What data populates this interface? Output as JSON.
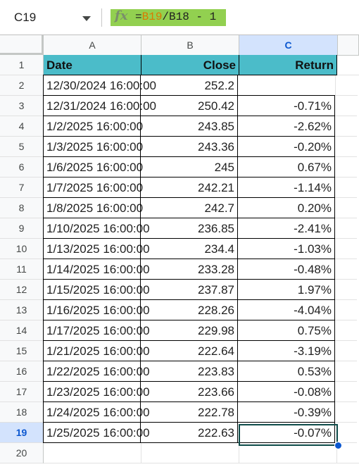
{
  "name_box": {
    "value": "C19"
  },
  "formula": {
    "prefix": "=",
    "ref1": "B19",
    "rest": "/B18 - 1"
  },
  "columns": [
    {
      "label": "A",
      "selected": false
    },
    {
      "label": "B",
      "selected": false
    },
    {
      "label": "C",
      "selected": true
    }
  ],
  "selected_row": "19",
  "rows": [
    {
      "n": "1",
      "date": "Date",
      "close": "Close",
      "ret": "Return",
      "header": true
    },
    {
      "n": "2",
      "date": "12/30/2024 16:00:00",
      "close": "252.2",
      "ret": ""
    },
    {
      "n": "3",
      "date": "12/31/2024 16:00:00",
      "close": "250.42",
      "ret": "-0.71%"
    },
    {
      "n": "4",
      "date": "1/2/2025 16:00:00",
      "close": "243.85",
      "ret": "-2.62%"
    },
    {
      "n": "5",
      "date": "1/3/2025 16:00:00",
      "close": "243.36",
      "ret": "-0.20%"
    },
    {
      "n": "6",
      "date": "1/6/2025 16:00:00",
      "close": "245",
      "ret": "0.67%"
    },
    {
      "n": "7",
      "date": "1/7/2025 16:00:00",
      "close": "242.21",
      "ret": "-1.14%"
    },
    {
      "n": "8",
      "date": "1/8/2025 16:00:00",
      "close": "242.7",
      "ret": "0.20%"
    },
    {
      "n": "9",
      "date": "1/10/2025 16:00:00",
      "close": "236.85",
      "ret": "-2.41%"
    },
    {
      "n": "10",
      "date": "1/13/2025 16:00:00",
      "close": "234.4",
      "ret": "-1.03%"
    },
    {
      "n": "11",
      "date": "1/14/2025 16:00:00",
      "close": "233.28",
      "ret": "-0.48%"
    },
    {
      "n": "12",
      "date": "1/15/2025 16:00:00",
      "close": "237.87",
      "ret": "1.97%"
    },
    {
      "n": "13",
      "date": "1/16/2025 16:00:00",
      "close": "228.26",
      "ret": "-4.04%"
    },
    {
      "n": "14",
      "date": "1/17/2025 16:00:00",
      "close": "229.98",
      "ret": "0.75%"
    },
    {
      "n": "15",
      "date": "1/21/2025 16:00:00",
      "close": "222.64",
      "ret": "-3.19%"
    },
    {
      "n": "16",
      "date": "1/22/2025 16:00:00",
      "close": "223.83",
      "ret": "0.53%"
    },
    {
      "n": "17",
      "date": "1/23/2025 16:00:00",
      "close": "223.66",
      "ret": "-0.08%"
    },
    {
      "n": "18",
      "date": "1/24/2025 16:00:00",
      "close": "222.78",
      "ret": "-0.39%"
    },
    {
      "n": "19",
      "date": "1/25/2025 16:00:00",
      "close": "222.63",
      "ret": "-0.07%"
    },
    {
      "n": "20",
      "date": "",
      "close": "",
      "ret": "",
      "empty": true
    }
  ],
  "colors": {
    "header_fill": "#4bbcc9",
    "formula_bg": "#92d050",
    "selection": "#0b57d0"
  }
}
